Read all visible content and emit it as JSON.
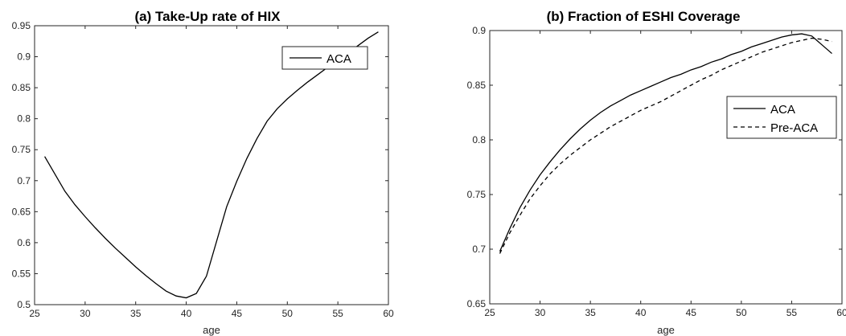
{
  "chart_data": [
    {
      "type": "line",
      "title": "(a) Take-Up rate of HIX",
      "xlabel": "age",
      "ylabel": "",
      "xlim": [
        25,
        60
      ],
      "ylim": [
        0.5,
        0.95
      ],
      "xticks": [
        25,
        30,
        35,
        40,
        45,
        50,
        55,
        60
      ],
      "yticks": [
        0.5,
        0.55,
        0.6,
        0.65,
        0.7,
        0.75,
        0.8,
        0.85,
        0.9,
        0.95
      ],
      "xtick_labels": [
        "25",
        "30",
        "35",
        "40",
        "45",
        "50",
        "55",
        "60"
      ],
      "ytick_labels": [
        "0.5",
        "0.55",
        "0.6",
        "0.65",
        "0.7",
        "0.75",
        "0.8",
        "0.85",
        "0.9",
        "0.95"
      ],
      "grid": false,
      "legend_position": "top-right",
      "series": [
        {
          "name": "ACA",
          "style": "solid",
          "color": "#000000",
          "x": [
            26,
            27,
            28,
            29,
            30,
            31,
            32,
            33,
            34,
            35,
            36,
            37,
            38,
            39,
            40,
            41,
            42,
            43,
            44,
            45,
            46,
            47,
            48,
            49,
            50,
            51,
            52,
            53,
            54,
            55,
            56,
            57,
            58,
            59
          ],
          "y": [
            0.739,
            0.711,
            0.683,
            0.661,
            0.642,
            0.624,
            0.607,
            0.591,
            0.576,
            0.561,
            0.547,
            0.534,
            0.522,
            0.514,
            0.511,
            0.518,
            0.546,
            0.602,
            0.658,
            0.699,
            0.736,
            0.768,
            0.796,
            0.816,
            0.832,
            0.846,
            0.859,
            0.871,
            0.883,
            0.895,
            0.906,
            0.918,
            0.93,
            0.94
          ]
        }
      ]
    },
    {
      "type": "line",
      "title": "(b) Fraction of ESHI Coverage",
      "xlabel": "age",
      "ylabel": "",
      "xlim": [
        25,
        60
      ],
      "ylim": [
        0.65,
        0.9
      ],
      "xticks": [
        25,
        30,
        35,
        40,
        45,
        50,
        55,
        60
      ],
      "yticks": [
        0.65,
        0.7,
        0.75,
        0.8,
        0.85,
        0.9
      ],
      "xtick_labels": [
        "25",
        "30",
        "35",
        "40",
        "45",
        "50",
        "55",
        "60"
      ],
      "ytick_labels": [
        "0.65",
        "0.7",
        "0.75",
        "0.8",
        "0.85",
        "0.9"
      ],
      "grid": false,
      "legend_position": "upper-right",
      "series": [
        {
          "name": "ACA",
          "style": "solid",
          "color": "#000000",
          "x": [
            26,
            27,
            28,
            29,
            30,
            31,
            32,
            33,
            34,
            35,
            36,
            37,
            38,
            39,
            40,
            41,
            42,
            43,
            44,
            45,
            46,
            47,
            48,
            49,
            50,
            51,
            52,
            53,
            54,
            55,
            56,
            57,
            58,
            59
          ],
          "y": [
            0.698,
            0.719,
            0.738,
            0.754,
            0.768,
            0.78,
            0.791,
            0.801,
            0.81,
            0.818,
            0.825,
            0.831,
            0.836,
            0.841,
            0.845,
            0.849,
            0.853,
            0.857,
            0.86,
            0.864,
            0.867,
            0.871,
            0.874,
            0.878,
            0.881,
            0.885,
            0.888,
            0.891,
            0.894,
            0.896,
            0.897,
            0.895,
            0.887,
            0.879
          ]
        },
        {
          "name": "Pre-ACA",
          "style": "dashed",
          "color": "#000000",
          "x": [
            26,
            27,
            28,
            29,
            30,
            31,
            32,
            33,
            34,
            35,
            36,
            37,
            38,
            39,
            40,
            41,
            42,
            43,
            44,
            45,
            46,
            47,
            48,
            49,
            50,
            51,
            52,
            53,
            54,
            55,
            56,
            57,
            58,
            59
          ],
          "y": [
            0.696,
            0.715,
            0.731,
            0.746,
            0.758,
            0.769,
            0.778,
            0.786,
            0.793,
            0.8,
            0.806,
            0.812,
            0.817,
            0.822,
            0.827,
            0.831,
            0.835,
            0.84,
            0.845,
            0.85,
            0.855,
            0.859,
            0.864,
            0.868,
            0.872,
            0.876,
            0.88,
            0.883,
            0.886,
            0.889,
            0.891,
            0.893,
            0.892,
            0.89
          ]
        }
      ]
    }
  ],
  "colors": {
    "line": "#000000",
    "axis": "#262626",
    "background": "#ffffff"
  }
}
